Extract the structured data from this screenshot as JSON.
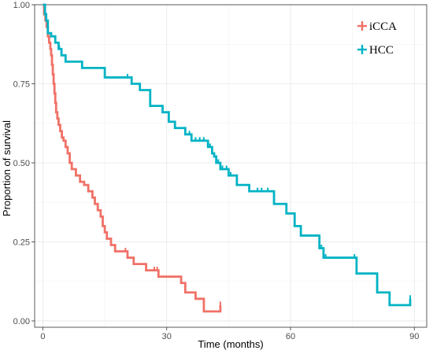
{
  "chart_data": {
    "type": "line",
    "title": "",
    "xlabel": "Time (months)",
    "ylabel": "Proportion of survival",
    "xlim": [
      -2,
      93
    ],
    "ylim": [
      -0.02,
      1.0
    ],
    "xticks": [
      0,
      30,
      60,
      90
    ],
    "xtick_labels": [
      "0",
      "30",
      "60",
      "90"
    ],
    "yticks": [
      0.0,
      0.25,
      0.5,
      0.75,
      1.0
    ],
    "ytick_labels": [
      "0.00",
      "0.25",
      "0.50",
      "0.75",
      "1.00"
    ],
    "grid": true,
    "legend_position": "top-right",
    "series": [
      {
        "name": "iCCA",
        "color": "#F07167",
        "step_points": [
          [
            0,
            1.0
          ],
          [
            0.3,
            0.97
          ],
          [
            0.6,
            0.95
          ],
          [
            0.9,
            0.93
          ],
          [
            1.2,
            0.9
          ],
          [
            1.5,
            0.88
          ],
          [
            1.8,
            0.86
          ],
          [
            2.0,
            0.84
          ],
          [
            2.2,
            0.81
          ],
          [
            2.4,
            0.78
          ],
          [
            2.6,
            0.75
          ],
          [
            2.8,
            0.72
          ],
          [
            3.0,
            0.69
          ],
          [
            3.2,
            0.66
          ],
          [
            3.5,
            0.64
          ],
          [
            3.8,
            0.62
          ],
          [
            4.2,
            0.6
          ],
          [
            4.6,
            0.58
          ],
          [
            5.0,
            0.57
          ],
          [
            5.5,
            0.55
          ],
          [
            6.0,
            0.53
          ],
          [
            6.5,
            0.5
          ],
          [
            7.0,
            0.48
          ],
          [
            8.0,
            0.46
          ],
          [
            9.0,
            0.44
          ],
          [
            10.0,
            0.43
          ],
          [
            11.0,
            0.41
          ],
          [
            12.0,
            0.39
          ],
          [
            12.6,
            0.37
          ],
          [
            13.3,
            0.35
          ],
          [
            14.0,
            0.33
          ],
          [
            14.5,
            0.3
          ],
          [
            15.0,
            0.28
          ],
          [
            15.5,
            0.26
          ],
          [
            16.5,
            0.24
          ],
          [
            17.5,
            0.22
          ],
          [
            20.5,
            0.2
          ],
          [
            22.0,
            0.18
          ],
          [
            25.0,
            0.16
          ],
          [
            28.0,
            0.14
          ],
          [
            33.5,
            0.12
          ],
          [
            34.5,
            0.09
          ],
          [
            37.0,
            0.07
          ],
          [
            39.0,
            0.03
          ],
          [
            43.0,
            0.05
          ]
        ],
        "censor_x": [
          0.5,
          20.0,
          27.0,
          27.7,
          43.0
        ]
      },
      {
        "name": "HCC",
        "color": "#00B3C4",
        "step_points": [
          [
            0,
            1.0
          ],
          [
            0.5,
            0.97
          ],
          [
            0.8,
            0.95
          ],
          [
            1.2,
            0.91
          ],
          [
            2.0,
            0.9
          ],
          [
            3.0,
            0.88
          ],
          [
            3.8,
            0.86
          ],
          [
            4.5,
            0.84
          ],
          [
            5.5,
            0.82
          ],
          [
            9.5,
            0.8
          ],
          [
            15.0,
            0.77
          ],
          [
            21.5,
            0.75
          ],
          [
            23.5,
            0.73
          ],
          [
            26.0,
            0.68
          ],
          [
            29.0,
            0.66
          ],
          [
            30.5,
            0.63
          ],
          [
            32.0,
            0.61
          ],
          [
            34.5,
            0.59
          ],
          [
            36.0,
            0.57
          ],
          [
            40.0,
            0.55
          ],
          [
            41.0,
            0.53
          ],
          [
            41.5,
            0.52
          ],
          [
            42.0,
            0.5
          ],
          [
            43.0,
            0.48
          ],
          [
            45.0,
            0.46
          ],
          [
            47.0,
            0.43
          ],
          [
            50.0,
            0.41
          ],
          [
            56.0,
            0.37
          ],
          [
            59.0,
            0.34
          ],
          [
            61.0,
            0.3
          ],
          [
            62.5,
            0.27
          ],
          [
            67.0,
            0.23
          ],
          [
            68.0,
            0.2
          ],
          [
            76.0,
            0.15
          ],
          [
            81.0,
            0.09
          ],
          [
            84.0,
            0.05
          ],
          [
            89.0,
            0.07
          ]
        ],
        "censor_x": [
          4.0,
          20.5,
          35.5,
          37.0,
          38.0,
          39.0,
          40.5,
          42.5,
          43.5,
          44.5,
          45.5,
          52.0,
          53.0,
          54.5,
          67.5,
          68.5,
          75.5,
          89.0
        ]
      }
    ]
  }
}
